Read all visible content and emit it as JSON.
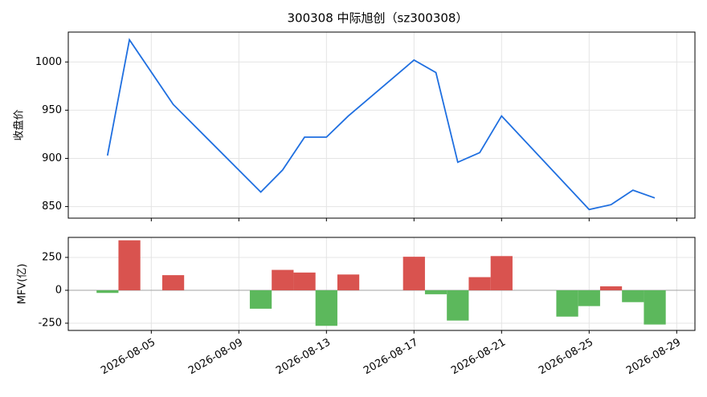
{
  "chart_data": [
    {
      "type": "line",
      "title": "300308 中际旭创（sz300308）",
      "y_label": "收盘价",
      "x": [
        "2026-08-03",
        "2026-08-04",
        "2026-08-06",
        "2026-08-10",
        "2026-08-11",
        "2026-08-12",
        "2026-08-13",
        "2026-08-14",
        "2026-08-17",
        "2026-08-18",
        "2026-08-19",
        "2026-08-20",
        "2026-08-21",
        "2026-08-25",
        "2026-08-26",
        "2026-08-27",
        "2026-08-28"
      ],
      "series": [
        {
          "name": "收盘价",
          "color": "#1f6fe0",
          "values": [
            903,
            1023,
            956,
            865,
            888,
            922,
            922,
            944,
            1002,
            989,
            896,
            906,
            944,
            847,
            852,
            867,
            859
          ]
        }
      ],
      "xlim": [
        "2026-08-01T05:00",
        "2026-08-29T20:00"
      ],
      "xticks": [
        "2026-08-05",
        "2026-08-09",
        "2026-08-13",
        "2026-08-17",
        "2026-08-21",
        "2026-08-25",
        "2026-08-29"
      ],
      "ylim": [
        838,
        1031
      ],
      "yticks": [
        850,
        900,
        950,
        1000
      ],
      "grid": true
    },
    {
      "type": "bar",
      "y_label": "MFV(亿)",
      "x": [
        "2026-08-03",
        "2026-08-04",
        "2026-08-06",
        "2026-08-10",
        "2026-08-11",
        "2026-08-12",
        "2026-08-13",
        "2026-08-14",
        "2026-08-17",
        "2026-08-18",
        "2026-08-19",
        "2026-08-20",
        "2026-08-21",
        "2026-08-24",
        "2026-08-25",
        "2026-08-26",
        "2026-08-27",
        "2026-08-28"
      ],
      "values": [
        -20,
        380,
        115,
        -140,
        155,
        135,
        -270,
        120,
        255,
        -30,
        -230,
        100,
        260,
        -200,
        -120,
        30,
        -90,
        -260
      ],
      "positive_color": "#d9534f",
      "negative_color": "#5cb85c",
      "xlim": [
        "2026-08-01T05:00",
        "2026-08-29T20:00"
      ],
      "xticks": [
        "2026-08-05",
        "2026-08-09",
        "2026-08-13",
        "2026-08-17",
        "2026-08-21",
        "2026-08-25",
        "2026-08-29"
      ],
      "ylim": [
        -305,
        402
      ],
      "yticks": [
        -250,
        0,
        250
      ],
      "grid": true
    }
  ]
}
